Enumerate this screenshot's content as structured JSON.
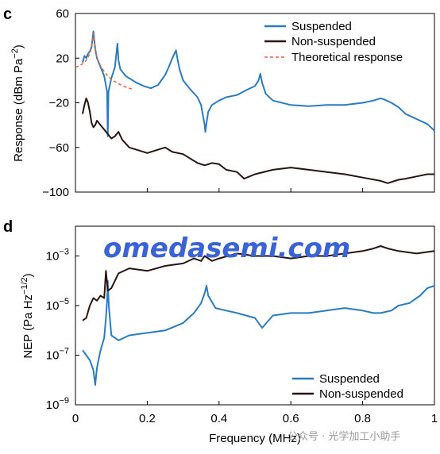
{
  "colors": {
    "suspended": "#2b7bbf",
    "non_suspended": "#2a1414",
    "theoretical": "#e0673a",
    "watermark": "#3a63d6"
  },
  "watermark": {
    "text": "omedasemi.com",
    "credit": "公众号 · 光学加工小助手"
  },
  "chart_data": [
    {
      "type": "line",
      "panel_label": "c",
      "xlabel": "",
      "ylabel_main": "Response (dBm Pa",
      "ylabel_sup": "−2",
      "ylabel_end": ")",
      "xlim": [
        0,
        1
      ],
      "ylim": [
        -100,
        60
      ],
      "yticks": [
        -100,
        -60,
        -20,
        20,
        60
      ],
      "ytick_labels": [
        "−100",
        "−60",
        "−20",
        "20",
        "60"
      ],
      "legend": {
        "position": "top-right",
        "entries": [
          "Suspended",
          "Non-suspended",
          "Theoretical response"
        ]
      },
      "grid": false,
      "series": [
        {
          "name": "Suspended",
          "style": "solid",
          "x": [
            0.02,
            0.025,
            0.03,
            0.035,
            0.04,
            0.045,
            0.05,
            0.055,
            0.06,
            0.07,
            0.08,
            0.088,
            0.09,
            0.092,
            0.1,
            0.11,
            0.117,
            0.12,
            0.125,
            0.13,
            0.14,
            0.15,
            0.17,
            0.19,
            0.21,
            0.23,
            0.25,
            0.26,
            0.27,
            0.28,
            0.285,
            0.29,
            0.3,
            0.32,
            0.34,
            0.35,
            0.36,
            0.362,
            0.365,
            0.37,
            0.38,
            0.4,
            0.42,
            0.45,
            0.48,
            0.5,
            0.51,
            0.515,
            0.52,
            0.53,
            0.55,
            0.6,
            0.65,
            0.7,
            0.75,
            0.8,
            0.83,
            0.85,
            0.86,
            0.88,
            0.9,
            0.92,
            0.94,
            0.96,
            0.98,
            1.0
          ],
          "y": [
            16,
            22,
            20,
            24,
            26,
            30,
            44,
            28,
            20,
            12,
            4,
            -10,
            -50,
            -10,
            2,
            12,
            33,
            18,
            10,
            8,
            4,
            2,
            -2,
            -5,
            -7,
            -4,
            5,
            12,
            20,
            27,
            18,
            10,
            0,
            -8,
            -15,
            -22,
            -40,
            -46,
            -38,
            -28,
            -22,
            -18,
            -15,
            -13,
            -8,
            -5,
            0,
            6,
            -2,
            -12,
            -18,
            -22,
            -23,
            -22,
            -22,
            -20,
            -18,
            -16,
            -17,
            -20,
            -24,
            -30,
            -33,
            -36,
            -39,
            -45
          ]
        },
        {
          "name": "Non-suspended",
          "style": "solid",
          "x": [
            0.02,
            0.025,
            0.03,
            0.035,
            0.04,
            0.045,
            0.05,
            0.055,
            0.06,
            0.07,
            0.08,
            0.09,
            0.1,
            0.11,
            0.12,
            0.13,
            0.15,
            0.17,
            0.2,
            0.23,
            0.25,
            0.27,
            0.3,
            0.32,
            0.34,
            0.36,
            0.38,
            0.4,
            0.42,
            0.45,
            0.47,
            0.5,
            0.55,
            0.6,
            0.65,
            0.7,
            0.75,
            0.8,
            0.85,
            0.87,
            0.9,
            0.92,
            0.95,
            0.98,
            1.0
          ],
          "y": [
            -30,
            -22,
            -16,
            -20,
            -28,
            -38,
            -42,
            -40,
            -36,
            -40,
            -44,
            -48,
            -52,
            -50,
            -46,
            -53,
            -60,
            -62,
            -65,
            -62,
            -60,
            -64,
            -66,
            -70,
            -74,
            -76,
            -74,
            -75,
            -80,
            -82,
            -88,
            -84,
            -80,
            -78,
            -80,
            -82,
            -84,
            -87,
            -90,
            -92,
            -89,
            -88,
            -86,
            -84,
            -84
          ]
        },
        {
          "name": "Theoretical response",
          "style": "dashed",
          "x": [
            0.0,
            0.01,
            0.02,
            0.03,
            0.04,
            0.045,
            0.05,
            0.055,
            0.06,
            0.07,
            0.08,
            0.09,
            0.1,
            0.12,
            0.14,
            0.16
          ],
          "y": [
            12,
            13,
            15,
            18,
            24,
            30,
            42,
            28,
            20,
            13,
            8,
            4,
            1,
            -3,
            -6,
            -8
          ]
        }
      ]
    },
    {
      "type": "line",
      "panel_label": "d",
      "xlabel": "Frequency (MHz)",
      "ylabel_main": "NEP (Pa Hz",
      "ylabel_sup": "−1/2",
      "ylabel_end": ")",
      "xlim": [
        0,
        1
      ],
      "yscale": "log",
      "ylim_log10": [
        -9,
        -1.8
      ],
      "xticks": [
        0,
        0.2,
        0.4,
        0.6,
        0.8,
        1
      ],
      "xtick_labels": [
        "0",
        "0.2",
        "0.4",
        "0.6",
        "0.8",
        "1"
      ],
      "yticks_log10": [
        -9,
        -7,
        -5,
        -3
      ],
      "ytick_base": "10",
      "ytick_exponents": [
        "−9",
        "−7",
        "−5",
        "−3"
      ],
      "legend": {
        "position": "bottom-right",
        "entries": [
          "Suspended",
          "Non-suspended"
        ]
      },
      "grid": false,
      "series": [
        {
          "name": "Suspended",
          "x": [
            0.02,
            0.03,
            0.04,
            0.05,
            0.055,
            0.06,
            0.07,
            0.08,
            0.085,
            0.088,
            0.09,
            0.093,
            0.1,
            0.12,
            0.15,
            0.2,
            0.25,
            0.3,
            0.33,
            0.35,
            0.36,
            0.365,
            0.37,
            0.39,
            0.42,
            0.45,
            0.5,
            0.52,
            0.55,
            0.6,
            0.65,
            0.7,
            0.75,
            0.8,
            0.83,
            0.85,
            0.88,
            0.9,
            0.93,
            0.96,
            0.98,
            1.0
          ],
          "log10_y": [
            -6.8,
            -7.0,
            -7.2,
            -7.6,
            -8.2,
            -7.5,
            -6.8,
            -6.3,
            -5.5,
            -4.8,
            -4.0,
            -5.0,
            -6.2,
            -6.4,
            -6.2,
            -6.1,
            -6.0,
            -5.7,
            -5.3,
            -4.9,
            -4.5,
            -4.2,
            -4.6,
            -5.1,
            -5.2,
            -5.3,
            -5.5,
            -5.9,
            -5.4,
            -5.3,
            -5.3,
            -5.2,
            -5.1,
            -5.2,
            -5.3,
            -5.3,
            -5.2,
            -5.0,
            -4.9,
            -4.6,
            -4.3,
            -4.2
          ]
        },
        {
          "name": "Non-suspended",
          "x": [
            0.02,
            0.03,
            0.04,
            0.05,
            0.06,
            0.07,
            0.08,
            0.085,
            0.09,
            0.1,
            0.12,
            0.15,
            0.2,
            0.25,
            0.3,
            0.33,
            0.35,
            0.36,
            0.38,
            0.4,
            0.45,
            0.5,
            0.55,
            0.6,
            0.65,
            0.7,
            0.75,
            0.8,
            0.83,
            0.85,
            0.87,
            0.9,
            0.95,
            1.0
          ],
          "log10_y": [
            -5.6,
            -5.5,
            -5.0,
            -4.7,
            -4.8,
            -4.6,
            -4.7,
            -3.6,
            -4.4,
            -4.3,
            -3.7,
            -3.5,
            -3.6,
            -3.4,
            -3.3,
            -3.1,
            -3.2,
            -3.0,
            -3.2,
            -3.1,
            -2.9,
            -3.0,
            -3.0,
            -3.1,
            -3.0,
            -3.0,
            -2.9,
            -2.8,
            -2.7,
            -2.6,
            -2.7,
            -2.8,
            -2.9,
            -2.8
          ]
        }
      ]
    }
  ]
}
